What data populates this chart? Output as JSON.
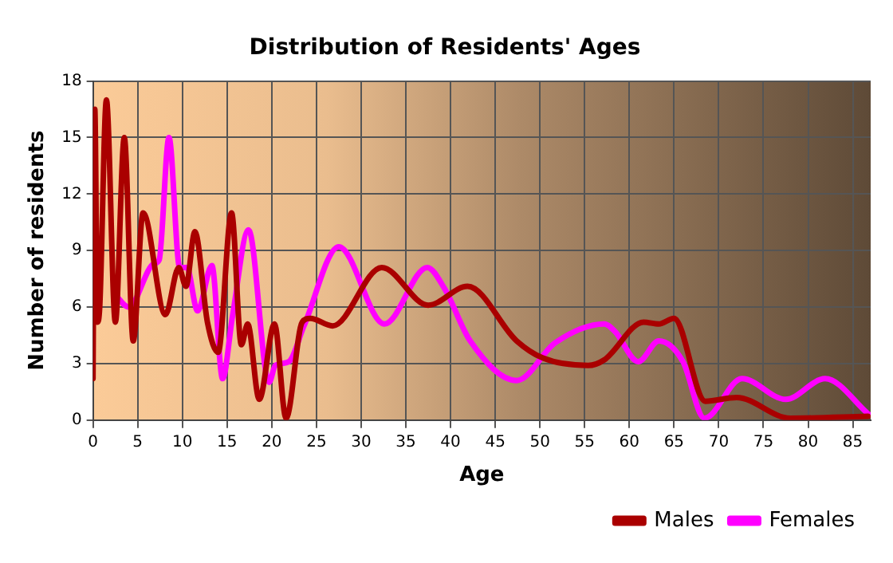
{
  "chart_data": {
    "type": "line",
    "title": "Distribution of Residents' Ages",
    "xlabel": "Age",
    "ylabel": "Number of residents",
    "xlim": [
      0,
      87
    ],
    "xticks": [
      0,
      5,
      10,
      15,
      20,
      25,
      30,
      35,
      40,
      45,
      50,
      55,
      60,
      65,
      70,
      75,
      80,
      85
    ],
    "ylim": [
      0,
      18
    ],
    "yticks": [
      0,
      3,
      6,
      9,
      12,
      15,
      18
    ],
    "grid": true,
    "legend": "bottom right",
    "marker": "none",
    "line_style": "solid",
    "series": [
      {
        "name": "Males",
        "color": "#aa0000",
        "x": [
          0,
          0.2,
          0.5,
          0.75,
          1.5,
          2.5,
          3.5,
          4.5,
          5.6,
          8.1,
          9.6,
          10.4,
          11.4,
          12.8,
          14,
          15.5,
          16.6,
          17.3,
          18.6,
          20.3,
          21.6,
          23.4,
          24.3,
          26.8,
          32.3,
          37.5,
          41.9,
          47.4,
          50.3,
          55.4,
          57.2,
          61.6,
          63.3,
          65,
          68.5,
          72,
          78,
          86.7
        ],
        "values": [
          2.2,
          16.5,
          5.2,
          6,
          17,
          5.2,
          15,
          4.2,
          11,
          5.6,
          8.1,
          7.1,
          10,
          5.2,
          3.6,
          11,
          4,
          5.1,
          1.1,
          5.1,
          0.1,
          5.2,
          5.4,
          5,
          8.1,
          6.1,
          7.1,
          4.2,
          3.3,
          2.9,
          3.2,
          5.2,
          5.1,
          5.4,
          1,
          1.2,
          0.1,
          0.2
        ]
      },
      {
        "name": "Females",
        "color": "#ff00ff",
        "x": [
          2.4,
          4,
          6.8,
          7.4,
          8.5,
          9.7,
          10.5,
          11.7,
          13.3,
          14.5,
          15.6,
          17.4,
          19.7,
          20.4,
          21.9,
          23.6,
          27.5,
          32.6,
          37.4,
          39.3,
          42.2,
          47.4,
          51.7,
          57.2,
          58.4,
          61,
          63.3,
          66,
          68.4,
          72.6,
          77.5,
          81.9,
          86.8
        ],
        "values": [
          6.7,
          6,
          8.3,
          8.5,
          15,
          8.1,
          8.1,
          5.8,
          8.2,
          2.2,
          5.5,
          10.1,
          2,
          2.9,
          3.1,
          5,
          9.2,
          5.1,
          8.1,
          7,
          4.2,
          2.1,
          4.1,
          5.1,
          4.7,
          3.1,
          4.2,
          3.1,
          0.1,
          2.2,
          1.1,
          2.2,
          0.3
        ]
      }
    ]
  }
}
